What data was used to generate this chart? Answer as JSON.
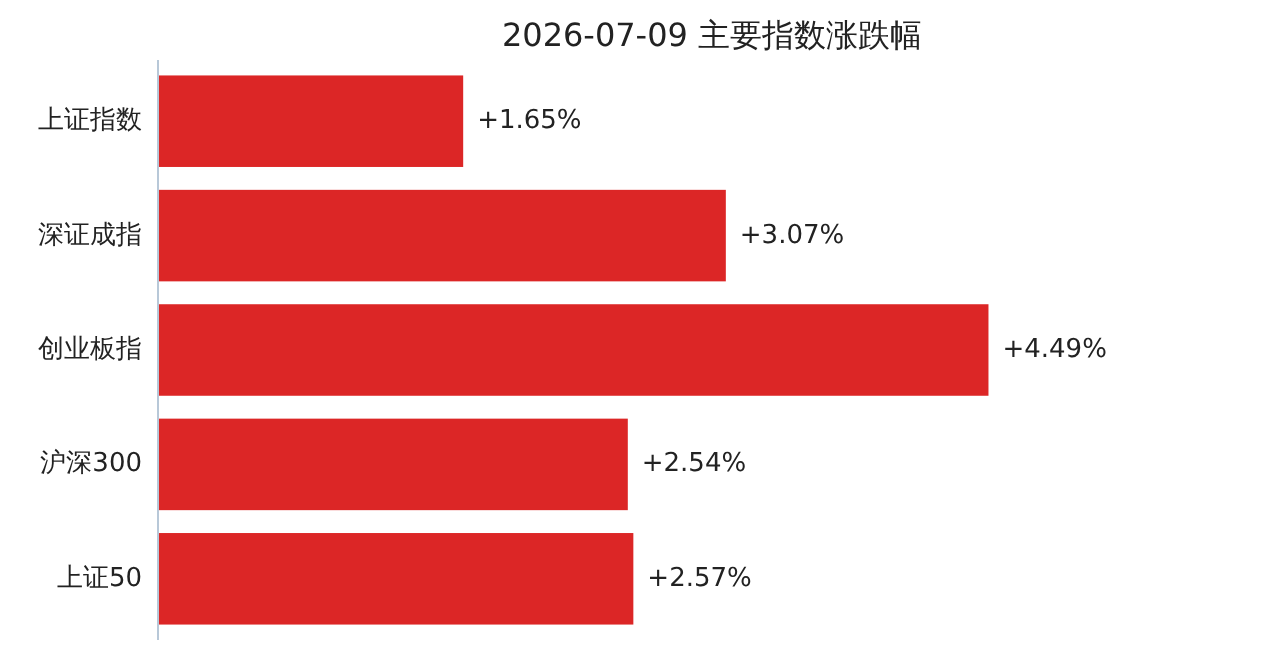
{
  "chart_data": {
    "type": "bar",
    "orientation": "horizontal",
    "title": "2026-07-09 主要指数涨跌幅",
    "categories": [
      "上证指数",
      "深证成指",
      "创业板指",
      "沪深300",
      "上证50"
    ],
    "values": [
      1.65,
      3.07,
      4.49,
      2.54,
      2.57
    ],
    "value_labels": [
      "+1.65%",
      "+3.07%",
      "+4.49%",
      "+2.54%",
      "+2.57%"
    ],
    "color": "#dc2626"
  }
}
